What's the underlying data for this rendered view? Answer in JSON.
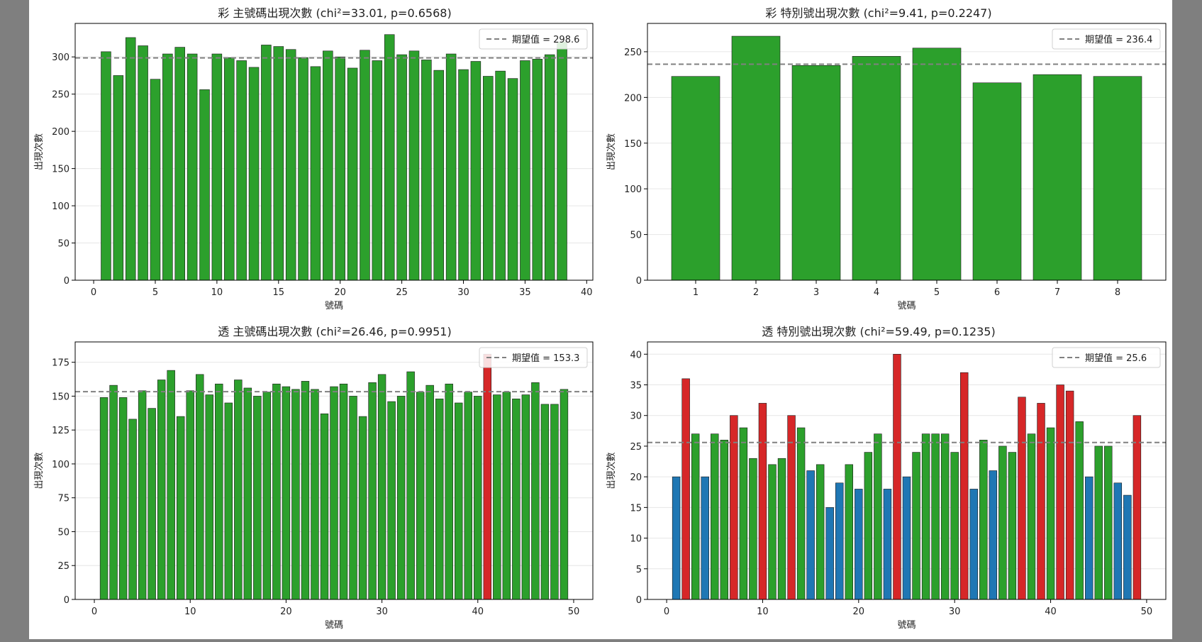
{
  "chart_data": [
    {
      "type": "bar",
      "title": "彩 主號碼出現次數 (chi²=33.01, p=0.6568)",
      "xlabel": "號碼",
      "ylabel": "出現次數",
      "x": [
        1,
        2,
        3,
        4,
        5,
        6,
        7,
        8,
        9,
        10,
        11,
        12,
        13,
        14,
        15,
        16,
        17,
        18,
        19,
        20,
        21,
        22,
        23,
        24,
        25,
        26,
        27,
        28,
        29,
        30,
        31,
        32,
        33,
        34,
        35,
        36,
        37,
        38
      ],
      "values": [
        307,
        275,
        326,
        315,
        270,
        304,
        313,
        304,
        256,
        304,
        299,
        295,
        286,
        316,
        314,
        310,
        299,
        287,
        308,
        300,
        285,
        309,
        295,
        330,
        303,
        308,
        296,
        282,
        304,
        283,
        294,
        274,
        281,
        271,
        295,
        297,
        303,
        320
      ],
      "colors": [
        "#2ca02c",
        "#2ca02c",
        "#2ca02c",
        "#2ca02c",
        "#2ca02c",
        "#2ca02c",
        "#2ca02c",
        "#2ca02c",
        "#2ca02c",
        "#2ca02c",
        "#2ca02c",
        "#2ca02c",
        "#2ca02c",
        "#2ca02c",
        "#2ca02c",
        "#2ca02c",
        "#2ca02c",
        "#2ca02c",
        "#2ca02c",
        "#2ca02c",
        "#2ca02c",
        "#2ca02c",
        "#2ca02c",
        "#2ca02c",
        "#2ca02c",
        "#2ca02c",
        "#2ca02c",
        "#2ca02c",
        "#2ca02c",
        "#2ca02c",
        "#2ca02c",
        "#2ca02c",
        "#2ca02c",
        "#2ca02c",
        "#2ca02c",
        "#2ca02c",
        "#2ca02c",
        "#2ca02c"
      ],
      "expected": 298.6,
      "legend_label": "期望值 = 298.6",
      "legend_position": "top-right",
      "xlim": [
        -1.5,
        40.5
      ],
      "ylim": [
        0,
        345
      ],
      "xticks": [
        0,
        5,
        10,
        15,
        20,
        25,
        30,
        35,
        40
      ],
      "yticks": [
        0,
        50,
        100,
        150,
        200,
        250,
        300
      ],
      "grid": "y"
    },
    {
      "type": "bar",
      "title": "彩 特別號出現次數 (chi²=9.41, p=0.2247)",
      "xlabel": "號碼",
      "ylabel": "出現次數",
      "x": [
        1,
        2,
        3,
        4,
        5,
        6,
        7,
        8
      ],
      "values": [
        223,
        267,
        235,
        245,
        254,
        216,
        225,
        223
      ],
      "colors": [
        "#2ca02c",
        "#2ca02c",
        "#2ca02c",
        "#2ca02c",
        "#2ca02c",
        "#2ca02c",
        "#2ca02c",
        "#2ca02c"
      ],
      "expected": 236.4,
      "legend_label": "期望值 = 236.4",
      "legend_position": "top-right",
      "xlim": [
        0.2,
        8.8
      ],
      "ylim": [
        0,
        281
      ],
      "xticks": [
        1,
        2,
        3,
        4,
        5,
        6,
        7,
        8
      ],
      "yticks": [
        0,
        50,
        100,
        150,
        200,
        250
      ],
      "grid": "y"
    },
    {
      "type": "bar",
      "title": "透 主號碼出現次數 (chi²=26.46, p=0.9951)",
      "xlabel": "號碼",
      "ylabel": "出現次數",
      "x": [
        1,
        2,
        3,
        4,
        5,
        6,
        7,
        8,
        9,
        10,
        11,
        12,
        13,
        14,
        15,
        16,
        17,
        18,
        19,
        20,
        21,
        22,
        23,
        24,
        25,
        26,
        27,
        28,
        29,
        30,
        31,
        32,
        33,
        34,
        35,
        36,
        37,
        38,
        39,
        40,
        41,
        42,
        43,
        44,
        45,
        46,
        47,
        48,
        49
      ],
      "values": [
        149,
        158,
        149,
        133,
        154,
        141,
        162,
        169,
        135,
        154,
        166,
        151,
        159,
        145,
        162,
        156,
        150,
        153,
        159,
        157,
        155,
        161,
        155,
        137,
        157,
        159,
        150,
        135,
        160,
        166,
        146,
        150,
        168,
        153,
        158,
        148,
        159,
        145,
        153,
        150,
        181,
        151,
        153,
        148,
        151,
        160,
        144,
        144,
        155
      ],
      "colors": [
        "#2ca02c",
        "#2ca02c",
        "#2ca02c",
        "#2ca02c",
        "#2ca02c",
        "#2ca02c",
        "#2ca02c",
        "#2ca02c",
        "#2ca02c",
        "#2ca02c",
        "#2ca02c",
        "#2ca02c",
        "#2ca02c",
        "#2ca02c",
        "#2ca02c",
        "#2ca02c",
        "#2ca02c",
        "#2ca02c",
        "#2ca02c",
        "#2ca02c",
        "#2ca02c",
        "#2ca02c",
        "#2ca02c",
        "#2ca02c",
        "#2ca02c",
        "#2ca02c",
        "#2ca02c",
        "#2ca02c",
        "#2ca02c",
        "#2ca02c",
        "#2ca02c",
        "#2ca02c",
        "#2ca02c",
        "#2ca02c",
        "#2ca02c",
        "#2ca02c",
        "#2ca02c",
        "#2ca02c",
        "#2ca02c",
        "#2ca02c",
        "#d62728",
        "#2ca02c",
        "#2ca02c",
        "#2ca02c",
        "#2ca02c",
        "#2ca02c",
        "#2ca02c",
        "#2ca02c",
        "#2ca02c"
      ],
      "expected": 153.3,
      "legend_label": "期望值 = 153.3",
      "legend_position": "top-right",
      "xlim": [
        -2,
        52
      ],
      "ylim": [
        0,
        190
      ],
      "xticks": [
        0,
        10,
        20,
        30,
        40,
        50
      ],
      "yticks": [
        0,
        25,
        50,
        75,
        100,
        125,
        150,
        175
      ],
      "grid": "y"
    },
    {
      "type": "bar",
      "title": "透 特別號出現次數 (chi²=59.49, p=0.1235)",
      "xlabel": "號碼",
      "ylabel": "出現次數",
      "x": [
        1,
        2,
        3,
        4,
        5,
        6,
        7,
        8,
        9,
        10,
        11,
        12,
        13,
        14,
        15,
        16,
        17,
        18,
        19,
        20,
        21,
        22,
        23,
        24,
        25,
        26,
        27,
        28,
        29,
        30,
        31,
        32,
        33,
        34,
        35,
        36,
        37,
        38,
        39,
        40,
        41,
        42,
        43,
        44,
        45,
        46,
        47,
        48,
        49
      ],
      "values": [
        20,
        36,
        27,
        20,
        27,
        26,
        30,
        28,
        23,
        32,
        22,
        23,
        30,
        28,
        21,
        22,
        15,
        19,
        22,
        18,
        24,
        27,
        18,
        40,
        20,
        24,
        27,
        27,
        27,
        24,
        37,
        18,
        26,
        21,
        25,
        24,
        33,
        27,
        32,
        28,
        35,
        34,
        29,
        20,
        25,
        25,
        19,
        17,
        30
      ],
      "colors": [
        "#1f77b4",
        "#d62728",
        "#2ca02c",
        "#1f77b4",
        "#2ca02c",
        "#2ca02c",
        "#d62728",
        "#2ca02c",
        "#2ca02c",
        "#d62728",
        "#2ca02c",
        "#2ca02c",
        "#d62728",
        "#2ca02c",
        "#1f77b4",
        "#2ca02c",
        "#1f77b4",
        "#1f77b4",
        "#2ca02c",
        "#1f77b4",
        "#2ca02c",
        "#2ca02c",
        "#1f77b4",
        "#d62728",
        "#1f77b4",
        "#2ca02c",
        "#2ca02c",
        "#2ca02c",
        "#2ca02c",
        "#2ca02c",
        "#d62728",
        "#1f77b4",
        "#2ca02c",
        "#1f77b4",
        "#2ca02c",
        "#2ca02c",
        "#d62728",
        "#2ca02c",
        "#d62728",
        "#2ca02c",
        "#d62728",
        "#d62728",
        "#2ca02c",
        "#1f77b4",
        "#2ca02c",
        "#2ca02c",
        "#1f77b4",
        "#1f77b4",
        "#d62728"
      ],
      "expected": 25.6,
      "legend_label": "期望值 = 25.6",
      "legend_position": "top-right",
      "xlim": [
        -2,
        52
      ],
      "ylim": [
        0,
        42
      ],
      "xticks": [
        0,
        10,
        20,
        30,
        40,
        50
      ],
      "yticks": [
        0,
        5,
        10,
        15,
        20,
        25,
        30,
        35,
        40
      ],
      "grid": "y"
    }
  ]
}
